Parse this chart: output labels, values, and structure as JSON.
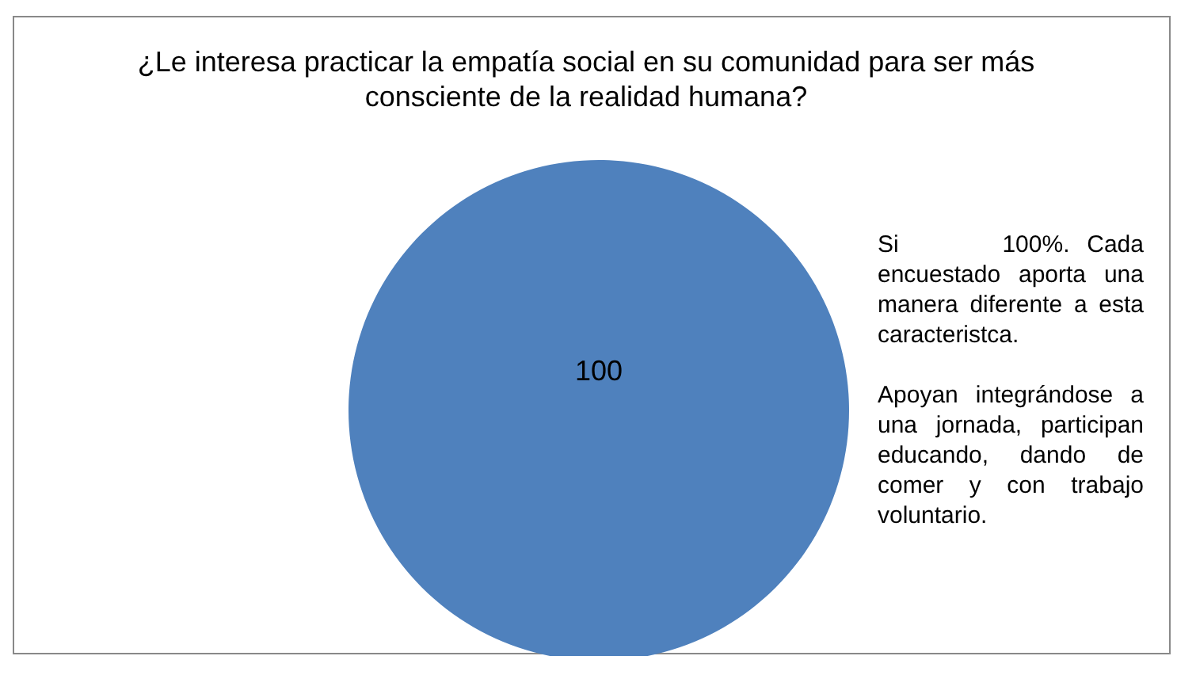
{
  "chart_data": {
    "type": "pie",
    "title": "¿Le interesa practicar la empatía social en su comunidad para ser más consciente de la realidad humana?",
    "categories": [
      null
    ],
    "values": [
      100
    ],
    "colors": [
      "#4f81bd"
    ],
    "data_labels": true,
    "annotations": [
      "Si      100%. Cada encuestado aporta una manera diferente a esta caracteristca.",
      "Apoyan integrándose a una jornada, participan educando, dando de comer y con trabajo voluntario."
    ]
  }
}
